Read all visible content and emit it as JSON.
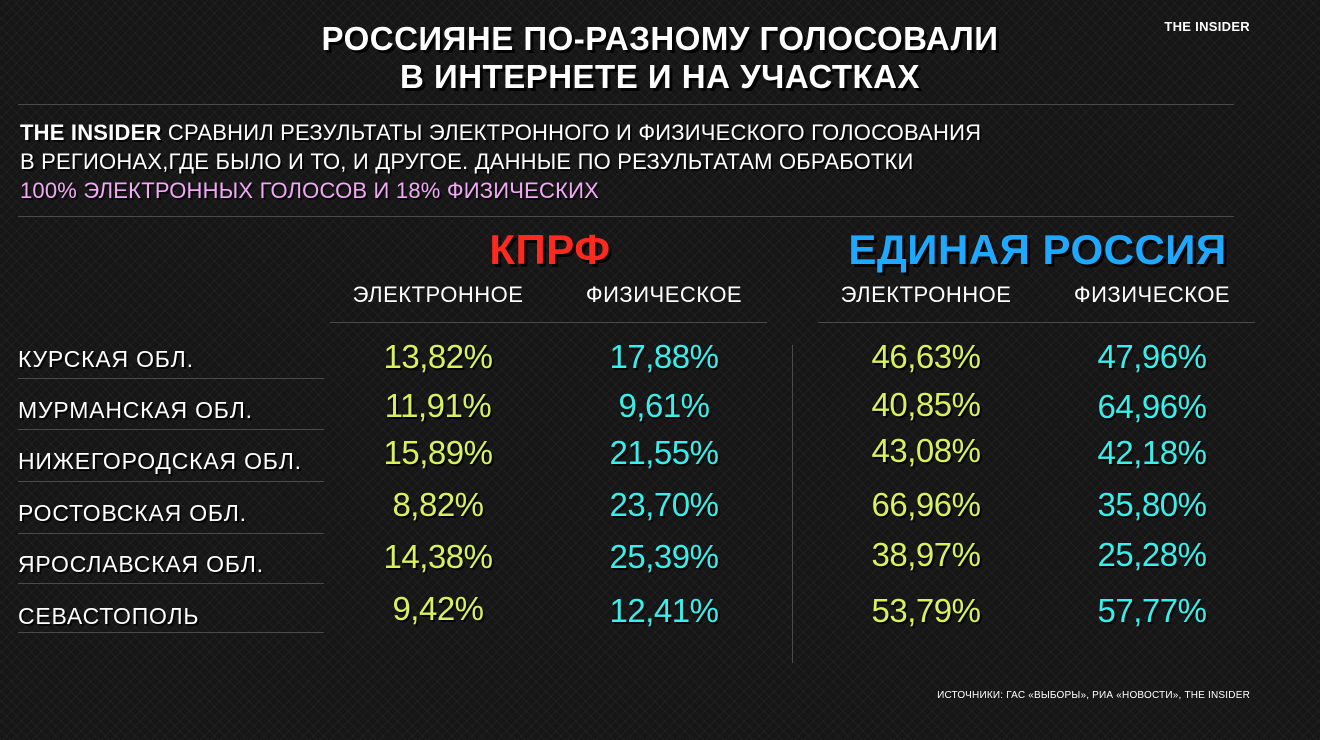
{
  "header": {
    "title_line1": "РОССИЯНЕ ПО-РАЗНОМУ ГОЛОСОВАЛИ",
    "title_line2": "В ИНТЕРНЕТЕ И НА УЧАСТКАХ",
    "brand": "THE INSIDER"
  },
  "intro": {
    "lead": "THE INSIDER",
    "line1_rest": " СРАВНИЛ РЕЗУЛЬТАТЫ ЭЛЕКТРОННОГО И ФИЗИЧЕСКОГО ГОЛОСОВАНИЯ",
    "line2": "В РЕГИОНАХ,ГДЕ БЫЛО И ТО, И ДРУГОЕ. ДАННЫЕ ПО РЕЗУЛЬТАТАМ ОБРАБОТКИ",
    "line3_highlight": "100% ЭЛЕКТРОННЫХ ГОЛОСОВ И 18% ФИЗИЧЕСКИХ",
    "highlight_color": "#f2a9f5"
  },
  "parties": {
    "kprf": {
      "name": "КПРФ",
      "color": "#ff2a1f"
    },
    "er": {
      "name": "ЕДИНАЯ РОССИЯ",
      "color": "#1ea8ff"
    }
  },
  "columns": {
    "electronic": "ЭЛЕКТРОННОЕ",
    "physical": "ФИЗИЧЕСКОЕ"
  },
  "value_colors": {
    "electronic": "#d9f25c",
    "physical": "#37f0ec"
  },
  "rows": [
    {
      "region": "КУРСКАЯ ОБЛ.",
      "kprf_e": "13,82%",
      "kprf_p": "17,88%",
      "er_e": "46,63%",
      "er_p": "47,96%"
    },
    {
      "region": "МУРМАНСКАЯ ОБЛ.",
      "kprf_e": "11,91%",
      "kprf_p": "9,61%",
      "er_e": "40,85%",
      "er_p": "64,96%"
    },
    {
      "region": "НИЖЕГОРОДСКАЯ ОБЛ.",
      "kprf_e": "15,89%",
      "kprf_p": "21,55%",
      "er_e": "43,08%",
      "er_p": "42,18%"
    },
    {
      "region": "РОСТОВСКАЯ ОБЛ.",
      "kprf_e": "8,82%",
      "kprf_p": "23,70%",
      "er_e": "66,96%",
      "er_p": "35,80%"
    },
    {
      "region": "ЯРОСЛАВСКАЯ ОБЛ.",
      "kprf_e": "14,38%",
      "kprf_p": "25,39%",
      "er_e": "38,97%",
      "er_p": "25,28%"
    },
    {
      "region": "СЕВАСТОПОЛЬ",
      "kprf_e": "9,42%",
      "kprf_p": "12,41%",
      "er_e": "53,79%",
      "er_p": "57,77%"
    }
  ],
  "source": "ИСТОЧНИКИ: ГАС «ВЫБОРЫ», РИА «НОВОСТИ», THE INSIDER"
}
